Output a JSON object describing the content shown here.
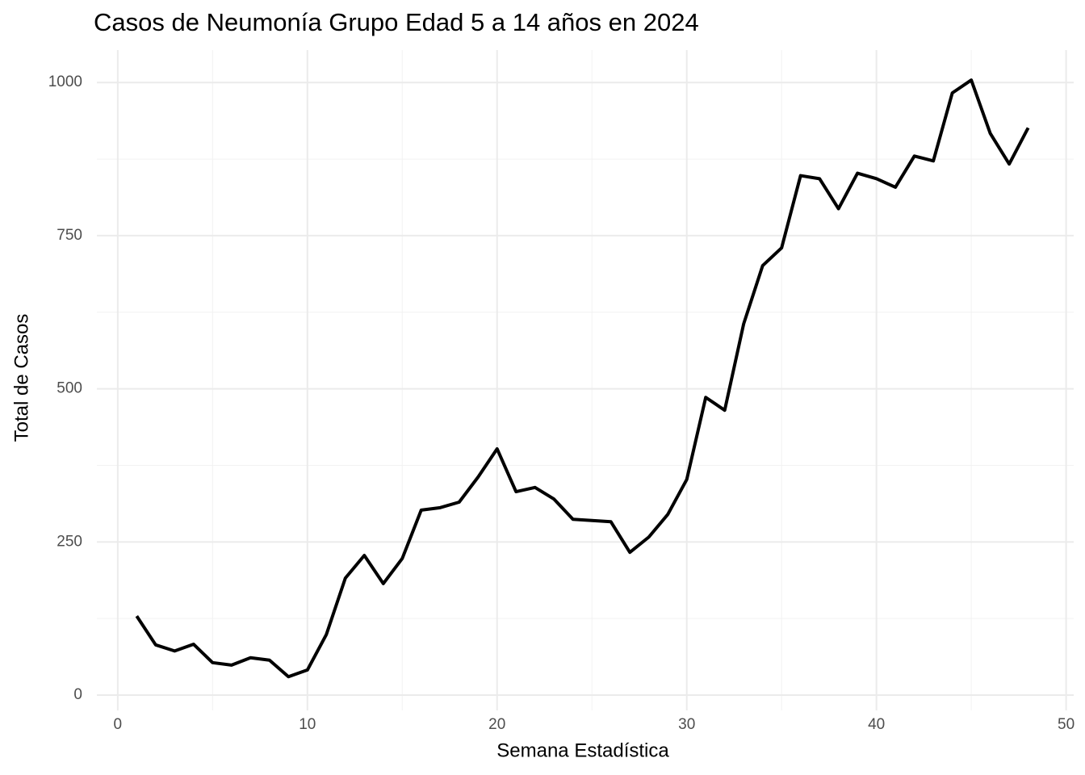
{
  "chart_data": {
    "type": "line",
    "title": "Casos de Neumonía Grupo Edad 5 a 14 años en 2024",
    "x_label": "Semana Estadística",
    "y_label": "Total de Casos",
    "x": [
      1,
      2,
      3,
      4,
      5,
      6,
      7,
      8,
      9,
      10,
      11,
      12,
      13,
      14,
      15,
      16,
      17,
      18,
      19,
      20,
      21,
      22,
      23,
      24,
      25,
      26,
      27,
      28,
      29,
      30,
      31,
      32,
      33,
      34,
      35,
      36,
      37,
      38,
      39,
      40,
      41,
      42,
      43,
      44,
      45,
      46,
      47,
      48
    ],
    "series": [
      {
        "color": "#000000",
        "values": [
          129,
          82,
          72,
          83,
          53,
          49,
          61,
          57,
          30,
          41,
          99,
          191,
          228,
          182,
          223,
          302,
          306,
          315,
          356,
          402,
          332,
          339,
          320,
          287,
          285,
          283,
          233,
          258,
          295,
          352,
          486,
          465,
          606,
          701,
          730,
          848,
          843,
          794,
          852,
          843,
          829,
          880,
          872,
          983,
          1004,
          917,
          867,
          926
        ]
      }
    ],
    "xlim": [
      -1.1,
      50.4
    ],
    "ylim": [
      -25,
      1053
    ],
    "xticks": [
      0,
      10,
      20,
      30,
      40,
      50
    ],
    "yticks": [
      0,
      250,
      500,
      750,
      1000
    ],
    "xminorticks": [
      5,
      15,
      25,
      35,
      45
    ],
    "yminorticks": [
      125,
      375,
      625,
      875
    ],
    "grid": true
  }
}
